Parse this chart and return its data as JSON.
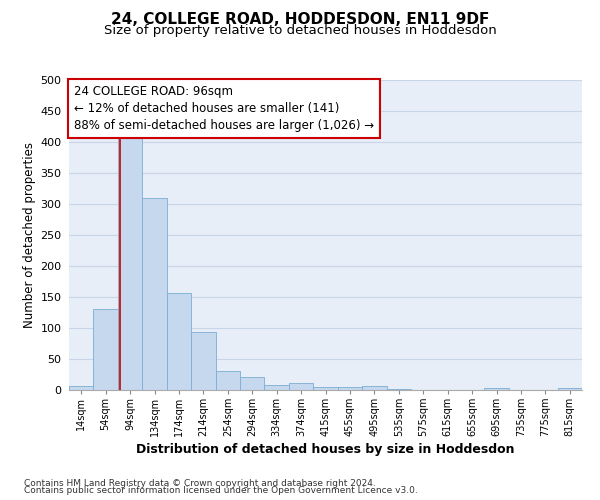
{
  "title": "24, COLLEGE ROAD, HODDESDON, EN11 9DF",
  "subtitle": "Size of property relative to detached houses in Hoddesdon",
  "xlabel": "Distribution of detached houses by size in Hoddesdon",
  "ylabel": "Number of detached properties",
  "footer_line1": "Contains HM Land Registry data © Crown copyright and database right 2024.",
  "footer_line2": "Contains public sector information licensed under the Open Government Licence v3.0.",
  "bar_labels": [
    "14sqm",
    "54sqm",
    "94sqm",
    "134sqm",
    "174sqm",
    "214sqm",
    "254sqm",
    "294sqm",
    "334sqm",
    "374sqm",
    "415sqm",
    "455sqm",
    "495sqm",
    "535sqm",
    "575sqm",
    "615sqm",
    "655sqm",
    "695sqm",
    "735sqm",
    "775sqm",
    "815sqm"
  ],
  "bar_values": [
    6,
    130,
    408,
    310,
    157,
    93,
    30,
    21,
    8,
    12,
    5,
    5,
    6,
    2,
    0,
    0,
    0,
    3,
    0,
    0,
    3
  ],
  "bar_color": "#c5d8ee",
  "bar_edge_color": "#7aadd4",
  "annotation_label": "24 COLLEGE ROAD: 96sqm",
  "annotation_line1": "← 12% of detached houses are smaller (141)",
  "annotation_line2": "88% of semi-detached houses are larger (1,026) →",
  "vline_color": "#cc0000",
  "vline_x": 1.575,
  "annotation_box_color": "#cc0000",
  "ylim": [
    0,
    500
  ],
  "yticks": [
    0,
    50,
    100,
    150,
    200,
    250,
    300,
    350,
    400,
    450,
    500
  ],
  "grid_color": "#c8d4e8",
  "bg_color": "#e8eef8",
  "title_fontsize": 11,
  "subtitle_fontsize": 9.5,
  "xlabel_fontsize": 9,
  "ylabel_fontsize": 8.5,
  "annotation_fontsize": 8.5,
  "footer_fontsize": 6.5
}
